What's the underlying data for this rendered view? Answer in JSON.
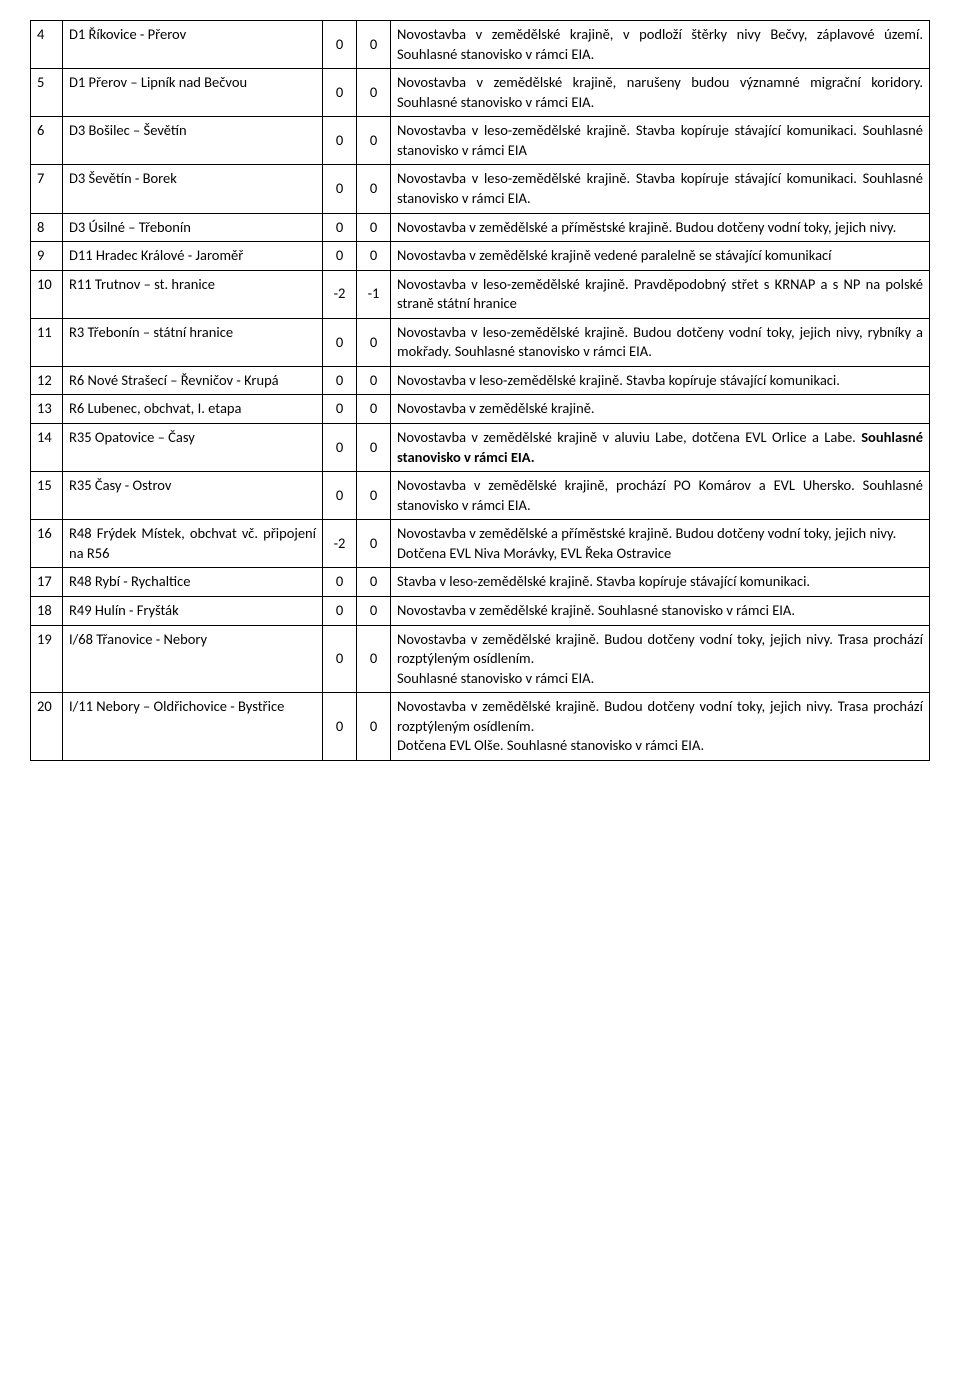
{
  "rows": [
    {
      "num": "4",
      "name": "D1 Říkovice - Přerov",
      "v1": "0",
      "v2": "0",
      "desc": "Novostavba v zemědělské krajině, v podloží štěrky nivy Bečvy,  záplavové území.  Souhlasné stanovisko v rámci EIA."
    },
    {
      "num": "5",
      "name": "D1 Přerov – Lipník nad Bečvou",
      "v1": "0",
      "v2": "0",
      "desc": "Novostavba v zemědělské krajině, narušeny budou významné migrační koridory. Souhlasné stanovisko v rámci EIA."
    },
    {
      "num": "6",
      "name": "D3 Bošilec – Ševětín",
      "v1": "0",
      "v2": "0",
      "desc": "Novostavba v leso-zemědělské krajině. Stavba kopíruje stávající komunikaci. Souhlasné stanovisko v rámci EIA"
    },
    {
      "num": "7",
      "name": "D3 Ševětín - Borek",
      "v1": "0",
      "v2": "0",
      "desc": "Novostavba v leso-zemědělské krajině. Stavba kopíruje stávající komunikaci. Souhlasné stanovisko v rámci EIA."
    },
    {
      "num": "8",
      "name": "D3 Úsilné – Třebonín",
      "v1": "0",
      "v2": "0",
      "desc": "Novostavba v zemědělské a příměstské krajině. Budou dotčeny vodní toky, jejich nivy."
    },
    {
      "num": "9",
      "name": "D11 Hradec Králové - Jaroměř",
      "v1": "0",
      "v2": "0",
      "desc": "Novostavba v zemědělské krajině vedené paralelně se stávající komunikací"
    },
    {
      "num": "10",
      "name": "R11 Trutnov – st. hranice",
      "v1": "-2",
      "v2": "-1",
      "desc": "Novostavba v leso-zemědělské krajině. Pravděpodobný střet s KRNAP a s NP na polské straně státní hranice"
    },
    {
      "num": "11",
      "name": "R3 Třebonín – státní hranice",
      "v1": "0",
      "v2": "0",
      "desc": "Novostavba v leso-zemědělské krajině. Budou dotčeny vodní toky, jejich nivy, rybníky a mokřady. Souhlasné stanovisko v rámci EIA."
    },
    {
      "num": "12",
      "name": "R6 Nové Strašecí – Řevničov - Krupá",
      "v1": "0",
      "v2": "0",
      "desc": "Novostavba v leso-zemědělské krajině. Stavba kopíruje stávající komunikaci."
    },
    {
      "num": "13",
      "name": "R6 Lubenec, obchvat, I. etapa",
      "v1": "0",
      "v2": "0",
      "desc": "Novostavba v zemědělské krajině."
    },
    {
      "num": "14",
      "name": "R35 Opatovice – Časy",
      "v1": "0",
      "v2": "0",
      "desc_pre": "Novostavba v zemědělské krajině v aluviu Labe, dotčena EVL Orlice a Labe. ",
      "desc_bold": "Souhlasné stanovisko v rámci EIA."
    },
    {
      "num": "15",
      "name": "R35 Časy - Ostrov",
      "v1": "0",
      "v2": "0",
      "desc": "Novostavba v zemědělské krajině, prochází PO Komárov a EVL Uhersko. Souhlasné stanovisko v rámci EIA."
    },
    {
      "num": "16",
      "name": "R48 Frýdek Místek, obchvat vč. připojení na R56",
      "v1": "-2",
      "v2": "0",
      "desc_l1": "Novostavba v zemědělské a příměstské krajině. Budou dotčeny vodní toky, jejich nivy.",
      "desc_l2": "Dotčena EVL Niva Morávky, EVL Řeka Ostravice"
    },
    {
      "num": "17",
      "name": "R48 Rybí - Rychaltice",
      "v1": "0",
      "v2": "0",
      "desc": "Stavba v leso-zemědělské krajině. Stavba kopíruje stávající komunikaci."
    },
    {
      "num": "18",
      "name": "R49 Hulín - Fryšták",
      "v1": "0",
      "v2": "0",
      "desc": "Novostavba v zemědělské krajině. Souhlasné stanovisko v rámci EIA."
    },
    {
      "num": "19",
      "name": "I/68 Třanovice - Nebory",
      "v1": "0",
      "v2": "0",
      "desc_l1": "Novostavba v zemědělské krajině. Budou dotčeny vodní toky, jejich nivy. Trasa prochází rozptýleným osídlením.",
      "desc_l2": "Souhlasné stanovisko v rámci EIA."
    },
    {
      "num": "20",
      "name": "I/11 Nebory – Oldřichovice - Bystřice",
      "v1": "0",
      "v2": "0",
      "desc_l1": "Novostavba v zemědělské krajině. Budou dotčeny vodní toky, jejich nivy. Trasa prochází rozptýleným osídlením.",
      "desc_l2": "Dotčena EVL Olše. Souhlasné stanovisko v rámci EIA."
    }
  ]
}
